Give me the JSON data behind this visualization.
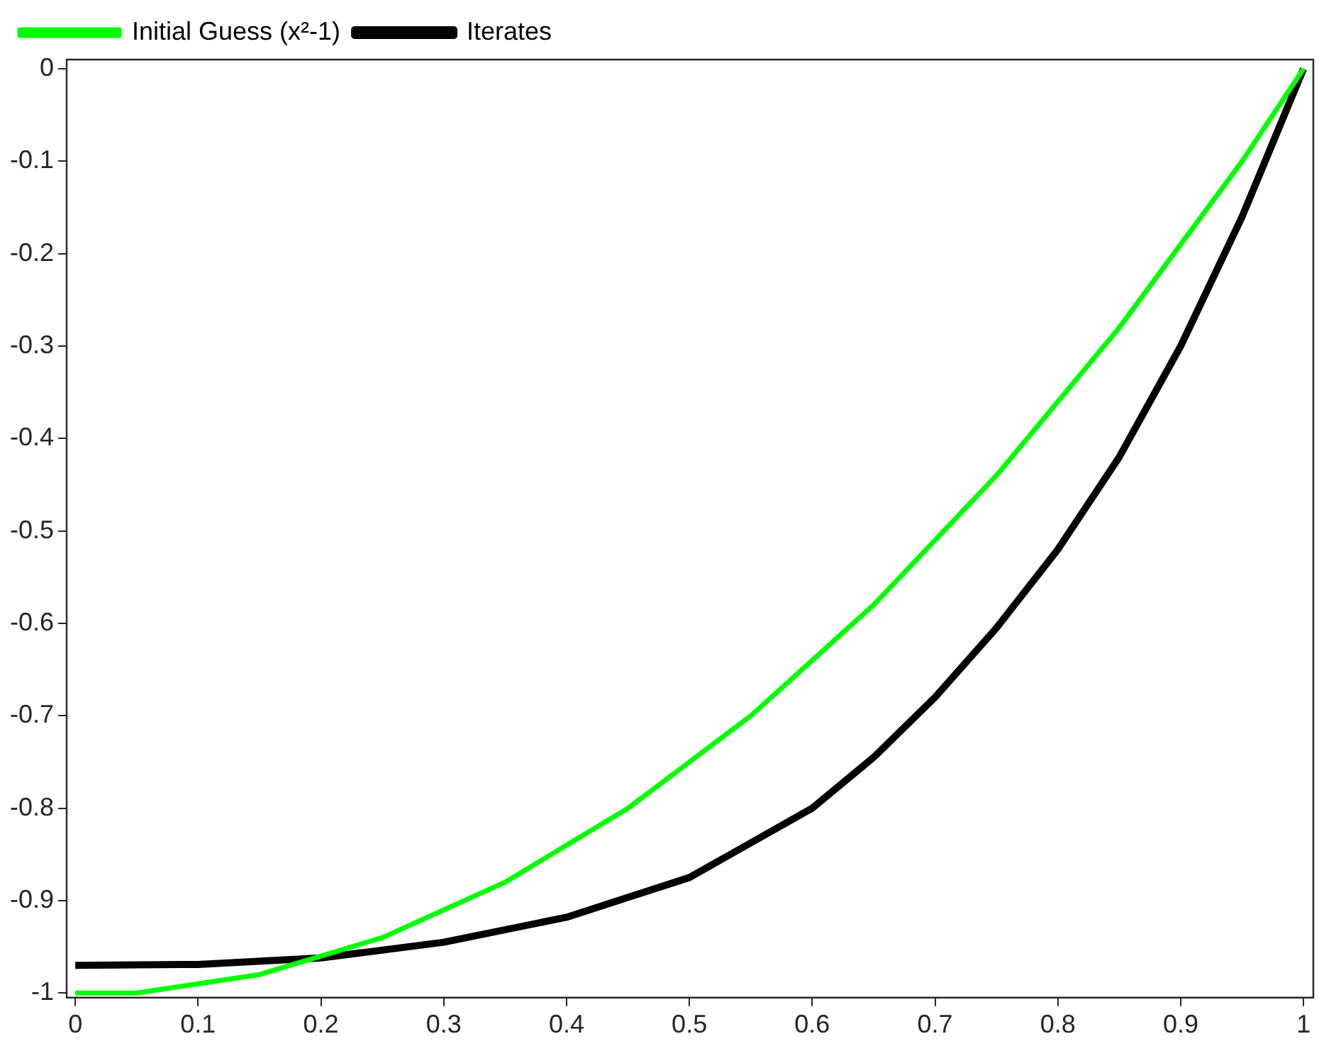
{
  "chart_data": {
    "type": "line",
    "xlim": [
      -0.007,
      1.008
    ],
    "ylim": [
      -1.005,
      0.01
    ],
    "xticks": [
      0,
      0.1,
      0.2,
      0.3,
      0.4,
      0.5,
      0.6,
      0.7,
      0.8,
      0.9,
      1
    ],
    "yticks": [
      -1,
      -0.9,
      -0.8,
      -0.7,
      -0.6,
      -0.5,
      -0.4,
      -0.3,
      -0.2,
      -0.1,
      0
    ],
    "grid": false,
    "legend": "top left",
    "marker": "none",
    "line_style": "solid",
    "series": [
      {
        "name": "Initial Guess (x²-1)",
        "color": "#00ff00",
        "x": [
          0,
          0.05,
          0.1,
          0.15,
          0.2,
          0.25,
          0.3,
          0.35,
          0.4,
          0.45,
          0.5,
          0.55,
          0.6,
          0.65,
          0.7,
          0.75,
          0.8,
          0.85,
          0.9,
          0.95,
          1
        ],
        "values": [
          -1,
          -1,
          -0.99,
          -0.98,
          -0.96,
          -0.94,
          -0.91,
          -0.88,
          -0.84,
          -0.8,
          -0.75,
          -0.7,
          -0.64,
          -0.58,
          -0.51,
          -0.44,
          -0.36,
          -0.28,
          -0.19,
          -0.1,
          0
        ]
      },
      {
        "name": "Iterates",
        "color": "#000000",
        "x": [
          0,
          0.1,
          0.2,
          0.3,
          0.4,
          0.5,
          0.6,
          0.65,
          0.7,
          0.75,
          0.8,
          0.85,
          0.9,
          0.95,
          1
        ],
        "values": [
          -0.97,
          -0.969,
          -0.962,
          -0.945,
          -0.918,
          -0.875,
          -0.8,
          -0.745,
          -0.68,
          -0.605,
          -0.52,
          -0.42,
          -0.3,
          -0.16,
          0
        ]
      }
    ]
  }
}
